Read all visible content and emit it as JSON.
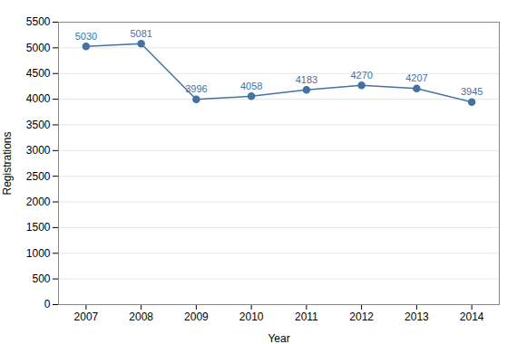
{
  "chart_data": {
    "type": "line",
    "x": [
      2007,
      2008,
      2009,
      2010,
      2011,
      2012,
      2013,
      2014
    ],
    "values": [
      5030,
      5081,
      3996,
      4058,
      4183,
      4270,
      4207,
      3945
    ],
    "color": "#4472a4",
    "marker": "circle",
    "xlabel": "Year",
    "ylabel": "Registrations",
    "xlim": [
      2006.5,
      2014.5
    ],
    "xticks": [
      2007,
      2008,
      2009,
      2010,
      2011,
      2012,
      2013,
      2014
    ],
    "ylim": [
      0,
      5500
    ],
    "yticks": [
      0,
      500,
      1000,
      1500,
      2000,
      2500,
      3000,
      3500,
      4000,
      4500,
      5000,
      5500
    ],
    "grid": "y",
    "data_labels": true
  }
}
